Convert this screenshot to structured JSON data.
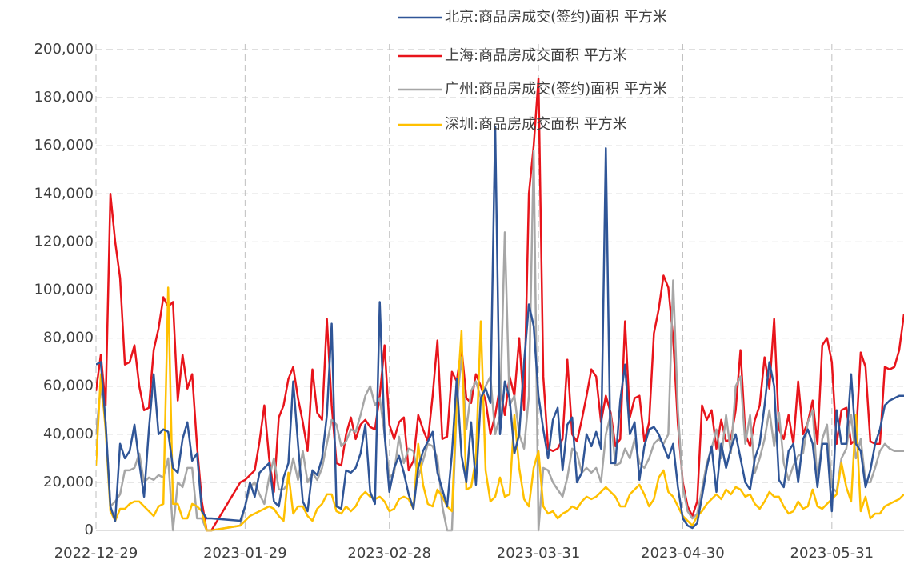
{
  "chart_data": {
    "type": "line",
    "x": [
      "2022-12-29",
      "2022-12-30",
      "2022-12-31",
      "2023-01-01",
      "2023-01-02",
      "2023-01-03",
      "2023-01-04",
      "2023-01-05",
      "2023-01-06",
      "2023-01-07",
      "2023-01-08",
      "2023-01-09",
      "2023-01-10",
      "2023-01-11",
      "2023-01-12",
      "2023-01-13",
      "2023-01-14",
      "2023-01-15",
      "2023-01-16",
      "2023-01-17",
      "2023-01-18",
      "2023-01-19",
      "2023-01-20",
      "2023-01-21",
      "2023-01-22",
      "2023-01-28",
      "2023-01-29",
      "2023-01-30",
      "2023-01-31",
      "2023-02-01",
      "2023-02-02",
      "2023-02-03",
      "2023-02-04",
      "2023-02-05",
      "2023-02-06",
      "2023-02-07",
      "2023-02-08",
      "2023-02-09",
      "2023-02-10",
      "2023-02-11",
      "2023-02-12",
      "2023-02-13",
      "2023-02-14",
      "2023-02-15",
      "2023-02-16",
      "2023-02-17",
      "2023-02-18",
      "2023-02-19",
      "2023-02-20",
      "2023-02-21",
      "2023-02-22",
      "2023-02-23",
      "2023-02-24",
      "2023-02-25",
      "2023-02-26",
      "2023-02-27",
      "2023-02-28",
      "2023-03-01",
      "2023-03-02",
      "2023-03-03",
      "2023-03-04",
      "2023-03-05",
      "2023-03-06",
      "2023-03-07",
      "2023-03-08",
      "2023-03-09",
      "2023-03-10",
      "2023-03-11",
      "2023-03-12",
      "2023-03-13",
      "2023-03-14",
      "2023-03-15",
      "2023-03-16",
      "2023-03-17",
      "2023-03-18",
      "2023-03-19",
      "2023-03-20",
      "2023-03-21",
      "2023-03-22",
      "2023-03-23",
      "2023-03-24",
      "2023-03-25",
      "2023-03-26",
      "2023-03-27",
      "2023-03-28",
      "2023-03-29",
      "2023-03-30",
      "2023-03-31",
      "2023-04-01",
      "2023-04-02",
      "2023-04-03",
      "2023-04-04",
      "2023-04-05",
      "2023-04-06",
      "2023-04-07",
      "2023-04-08",
      "2023-04-09",
      "2023-04-10",
      "2023-04-11",
      "2023-04-12",
      "2023-04-13",
      "2023-04-14",
      "2023-04-15",
      "2023-04-16",
      "2023-04-17",
      "2023-04-18",
      "2023-04-19",
      "2023-04-20",
      "2023-04-21",
      "2023-04-22",
      "2023-04-23",
      "2023-04-24",
      "2023-04-25",
      "2023-04-26",
      "2023-04-27",
      "2023-04-28",
      "2023-04-29",
      "2023-04-30",
      "2023-05-01",
      "2023-05-02",
      "2023-05-03",
      "2023-05-04",
      "2023-05-05",
      "2023-05-06",
      "2023-05-07",
      "2023-05-08",
      "2023-05-09",
      "2023-05-10",
      "2023-05-11",
      "2023-05-12",
      "2023-05-13",
      "2023-05-14",
      "2023-05-15",
      "2023-05-16",
      "2023-05-17",
      "2023-05-18",
      "2023-05-19",
      "2023-05-20",
      "2023-05-21",
      "2023-05-22",
      "2023-05-23",
      "2023-05-24",
      "2023-05-25",
      "2023-05-26",
      "2023-05-27",
      "2023-05-28",
      "2023-05-29",
      "2023-05-30",
      "2023-05-31",
      "2023-06-01",
      "2023-06-02",
      "2023-06-03",
      "2023-06-04",
      "2023-06-05",
      "2023-06-06",
      "2023-06-07",
      "2023-06-08",
      "2023-06-09",
      "2023-06-10",
      "2023-06-11",
      "2023-06-12",
      "2023-06-13",
      "2023-06-14",
      "2023-06-15"
    ],
    "series": [
      {
        "name": "北京:商品房成交(签约)面积 平方米",
        "color": "#2f5597",
        "values": [
          69000,
          70000,
          45000,
          10000,
          4000,
          36000,
          30000,
          33000,
          44000,
          28000,
          14000,
          42000,
          65000,
          40000,
          42000,
          41000,
          26000,
          24000,
          38000,
          45000,
          29000,
          32000,
          8000,
          5000,
          5000,
          4000,
          10000,
          20000,
          14000,
          24000,
          26000,
          28000,
          12000,
          10000,
          22000,
          28000,
          62000,
          36000,
          12000,
          8000,
          25000,
          23000,
          30000,
          48000,
          86000,
          10000,
          9000,
          25000,
          24000,
          26000,
          32000,
          44000,
          16000,
          11000,
          95000,
          40000,
          16000,
          26000,
          31000,
          24000,
          15000,
          9000,
          26000,
          33000,
          37000,
          41000,
          24000,
          17000,
          10000,
          32000,
          63000,
          31000,
          20000,
          45000,
          19000,
          55000,
          59000,
          53000,
          168000,
          40000,
          62000,
          55000,
          32000,
          40000,
          70000,
          94000,
          85000,
          56000,
          42000,
          30000,
          46000,
          51000,
          25000,
          44000,
          47000,
          20000,
          24000,
          40000,
          35000,
          41000,
          34000,
          159000,
          28000,
          28000,
          54000,
          69000,
          40000,
          45000,
          21000,
          35000,
          42000,
          43000,
          40000,
          35000,
          30000,
          36000,
          18000,
          5000,
          2000,
          1000,
          3000,
          14000,
          26000,
          35000,
          16000,
          36000,
          26000,
          34000,
          40000,
          30000,
          20000,
          17000,
          30000,
          36000,
          52000,
          70000,
          60000,
          21000,
          18000,
          33000,
          36000,
          20000,
          38000,
          42000,
          36000,
          18000,
          36000,
          36000,
          8000,
          50000,
          36000,
          36000,
          65000,
          36000,
          33000,
          18000,
          25000,
          36000,
          42000,
          52000,
          54000,
          55000,
          56000,
          56000
        ]
      },
      {
        "name": "上海:商品房成交面积 平方米",
        "color": "#e8141b",
        "values": [
          58000,
          73000,
          52000,
          140000,
          120000,
          105000,
          69000,
          70000,
          77000,
          60000,
          50000,
          51000,
          75000,
          84000,
          97000,
          93000,
          95000,
          54000,
          73000,
          59000,
          65000,
          35000,
          12000,
          0,
          0,
          20000,
          21000,
          23000,
          25000,
          37000,
          52000,
          30000,
          16000,
          47000,
          52000,
          63000,
          68000,
          55000,
          45000,
          33000,
          67000,
          49000,
          46000,
          88000,
          52000,
          28000,
          27000,
          40000,
          47000,
          38000,
          44000,
          46000,
          43000,
          42000,
          56000,
          77000,
          44000,
          38000,
          45000,
          47000,
          25000,
          29000,
          48000,
          42000,
          37000,
          56000,
          79000,
          38000,
          39000,
          66000,
          62000,
          76000,
          55000,
          53000,
          65000,
          60000,
          54000,
          40000,
          48000,
          60000,
          48000,
          64000,
          56000,
          80000,
          50000,
          140000,
          160000,
          188000,
          64000,
          34000,
          33000,
          34000,
          38000,
          71000,
          40000,
          37000,
          46000,
          56000,
          67000,
          64000,
          45000,
          56000,
          49000,
          35000,
          38000,
          87000,
          47000,
          55000,
          56000,
          37000,
          45000,
          82000,
          92000,
          106000,
          101000,
          80000,
          44000,
          20000,
          10000,
          6000,
          12000,
          52000,
          46000,
          50000,
          34000,
          46000,
          37000,
          38000,
          50000,
          75000,
          40000,
          35000,
          46000,
          52000,
          72000,
          59000,
          88000,
          42000,
          38000,
          48000,
          36000,
          62000,
          40000,
          45000,
          54000,
          36000,
          77000,
          80000,
          70000,
          36000,
          50000,
          51000,
          36000,
          38000,
          74000,
          68000,
          37000,
          36000,
          36000,
          68000,
          67000,
          68000,
          75000,
          90000
        ]
      },
      {
        "name": "广州:商品房成交(签约)面积 平方米",
        "color": "#a6a6a6",
        "values": [
          40000,
          60000,
          45000,
          10000,
          12000,
          15000,
          25000,
          25000,
          26000,
          32000,
          20000,
          22000,
          21000,
          23000,
          22000,
          30000,
          0,
          20000,
          18000,
          26000,
          26000,
          5000,
          5000,
          0,
          0,
          2000,
          10000,
          18000,
          20000,
          15000,
          11000,
          22000,
          30000,
          17000,
          17000,
          20000,
          30000,
          21000,
          33000,
          20000,
          24000,
          21000,
          26000,
          36000,
          46000,
          44000,
          35000,
          37000,
          42000,
          41000,
          48000,
          56000,
          60000,
          52000,
          55000,
          40000,
          22000,
          24000,
          39000,
          28000,
          34000,
          33000,
          22000,
          29000,
          36000,
          35000,
          30000,
          10000,
          0,
          0,
          52000,
          72000,
          42000,
          58000,
          62000,
          55000,
          60000,
          64000,
          40000,
          48000,
          124000,
          52000,
          56000,
          40000,
          34000,
          56000,
          158000,
          0,
          26000,
          25000,
          20000,
          17000,
          14000,
          22000,
          34000,
          32000,
          24000,
          26000,
          24000,
          26000,
          20000,
          40000,
          48000,
          27000,
          28000,
          34000,
          30000,
          38000,
          28000,
          26000,
          30000,
          36000,
          38000,
          36000,
          40000,
          104000,
          50000,
          18000,
          8000,
          5000,
          7000,
          17000,
          28000,
          34000,
          42000,
          30000,
          48000,
          32000,
          60000,
          64000,
          36000,
          48000,
          24000,
          30000,
          38000,
          50000,
          35000,
          49000,
          28000,
          21000,
          27000,
          31000,
          32000,
          45000,
          50000,
          20000,
          38000,
          44000,
          18000,
          16000,
          30000,
          34000,
          48000,
          30000,
          38000,
          20000,
          20000,
          26000,
          33000,
          36000,
          34000,
          33000,
          33000,
          33000
        ]
      },
      {
        "name": "深圳:商品房成交面积 平方米",
        "color": "#ffc000",
        "values": [
          27000,
          65000,
          42000,
          8000,
          4000,
          9000,
          9000,
          11000,
          12000,
          12000,
          10000,
          8000,
          6000,
          10000,
          11000,
          101000,
          11000,
          11000,
          5000,
          5000,
          11000,
          10000,
          8000,
          0,
          0,
          2000,
          4000,
          6000,
          7000,
          8000,
          9000,
          10000,
          9000,
          6000,
          4000,
          24000,
          7000,
          10000,
          10000,
          6000,
          4000,
          9000,
          11000,
          15000,
          15000,
          8000,
          7000,
          10000,
          8000,
          10000,
          14000,
          16000,
          14000,
          13000,
          14000,
          12000,
          8000,
          9000,
          13000,
          14000,
          13000,
          9000,
          36000,
          19000,
          11000,
          10000,
          17000,
          14000,
          10000,
          8000,
          53000,
          83000,
          17000,
          18000,
          30000,
          87000,
          25000,
          12000,
          14000,
          22000,
          14000,
          15000,
          48000,
          26000,
          13000,
          10000,
          26000,
          33000,
          10000,
          7000,
          8000,
          5000,
          7000,
          8000,
          10000,
          9000,
          12000,
          14000,
          13000,
          14000,
          16000,
          18000,
          16000,
          14000,
          10000,
          10000,
          15000,
          17000,
          19000,
          15000,
          10000,
          13000,
          22000,
          25000,
          16000,
          14000,
          10000,
          6000,
          4000,
          2000,
          6000,
          8000,
          11000,
          13000,
          15000,
          13000,
          17000,
          15000,
          18000,
          17000,
          14000,
          15000,
          11000,
          9000,
          12000,
          16000,
          14000,
          14000,
          10000,
          7000,
          8000,
          12000,
          9000,
          10000,
          17000,
          10000,
          9000,
          11000,
          13000,
          15000,
          28000,
          18000,
          12000,
          48000,
          8000,
          14000,
          5000,
          7000,
          7000,
          10000,
          11000,
          12000,
          13000,
          15000
        ]
      }
    ],
    "xlim": [
      "2022-12-29",
      "2023-06-15"
    ],
    "xticks": [
      "2022-12-29",
      "2023-01-29",
      "2023-02-28",
      "2023-03-31",
      "2023-04-30",
      "2023-05-31"
    ],
    "ylim": [
      0,
      200000
    ],
    "yticks": [
      0,
      {
        "value": 20000,
        "label": "20,000"
      },
      {
        "value": 40000,
        "label": "40,000"
      },
      {
        "value": 60000,
        "label": "60,000"
      },
      {
        "value": 80000,
        "label": "80,000"
      },
      {
        "value": 100000,
        "label": "100,000"
      },
      {
        "value": 120000,
        "label": "120,000"
      },
      {
        "value": 140000,
        "label": "140,000"
      },
      {
        "value": 160000,
        "label": "160,000"
      },
      {
        "value": 180000,
        "label": "180,000"
      },
      {
        "value": 200000,
        "label": "200,000"
      }
    ],
    "grid": true,
    "legend": "top"
  }
}
